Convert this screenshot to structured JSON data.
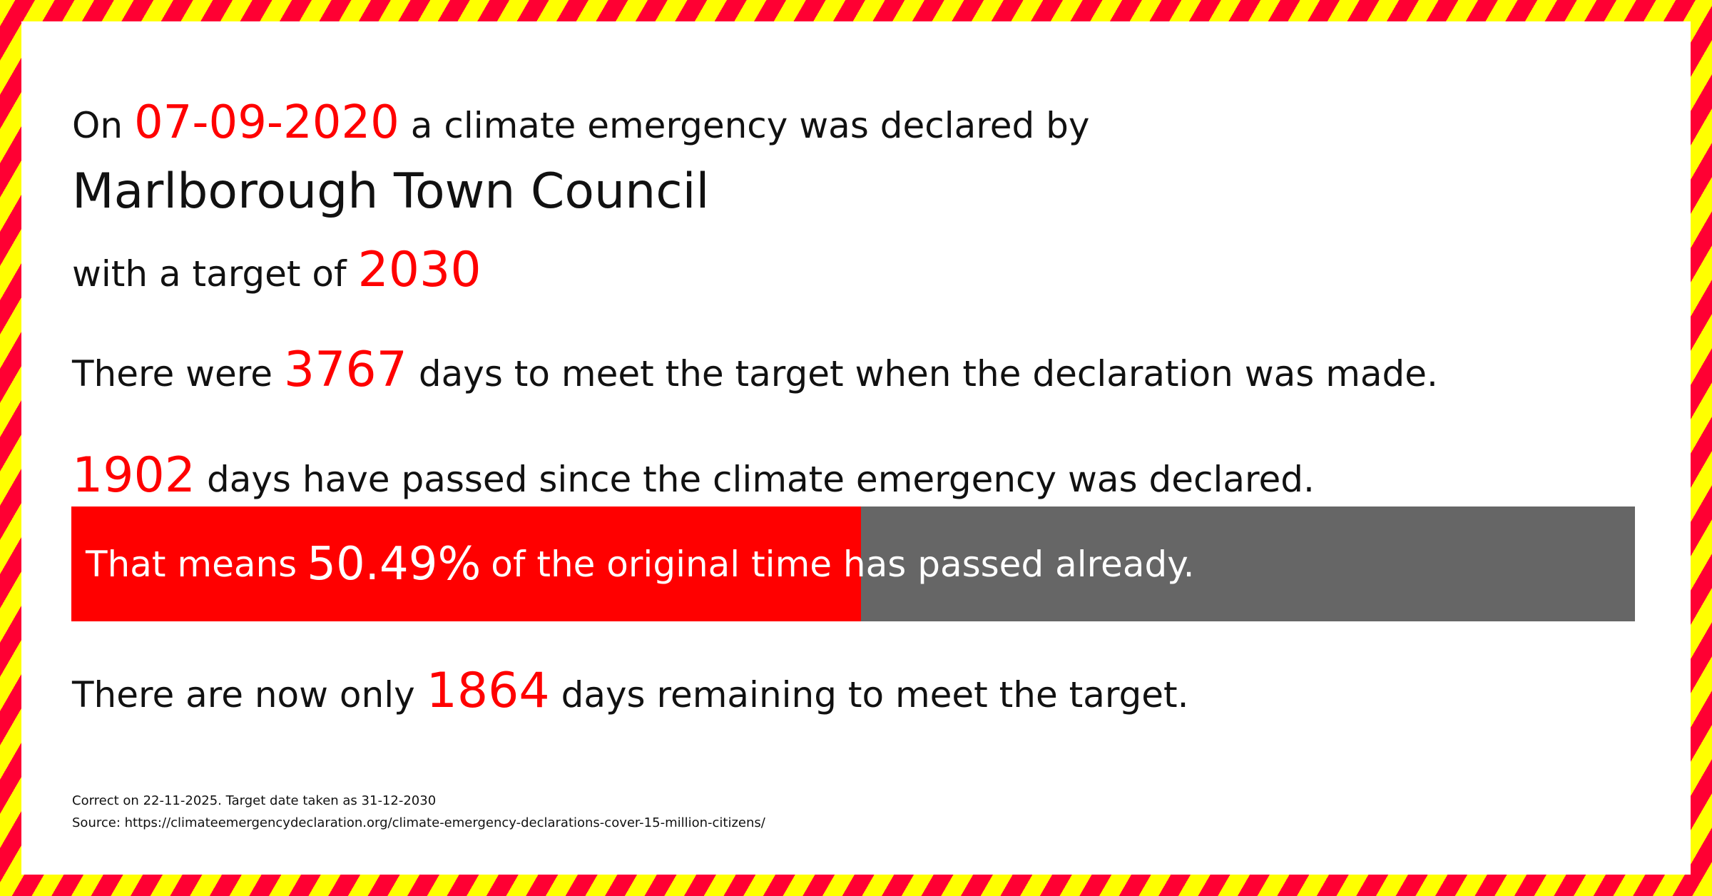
{
  "colors": {
    "accent": "#ff0000",
    "bar_remaining": "#666666",
    "stripe_a": "#ffff00",
    "stripe_b": "#ff0033"
  },
  "line1": {
    "prefix": "On",
    "date": "07-09-2020",
    "suffix": "a climate emergency was declared by"
  },
  "council": "Marlborough Town Council",
  "line3": {
    "prefix": "with a target of",
    "target": "2030"
  },
  "line4": {
    "prefix": "There were",
    "days": "3767",
    "suffix": "days to meet the target when the declaration was made."
  },
  "line5": {
    "days": "1902",
    "suffix": "days have passed since the climate emergency was declared."
  },
  "bar": {
    "prefix": "That means",
    "percent": "50.49%",
    "suffix": "of the original time has passed already.",
    "percent_value": 50.49
  },
  "line6": {
    "prefix": "There are now only",
    "days": "1864",
    "suffix": "days remaining to meet the target."
  },
  "footer": {
    "correct": "Correct on 22-11-2025. Target date taken as 31-12-2030",
    "source": "Source: https://climateemergencydeclaration.org/climate-emergency-declarations-cover-15-million-citizens/"
  }
}
